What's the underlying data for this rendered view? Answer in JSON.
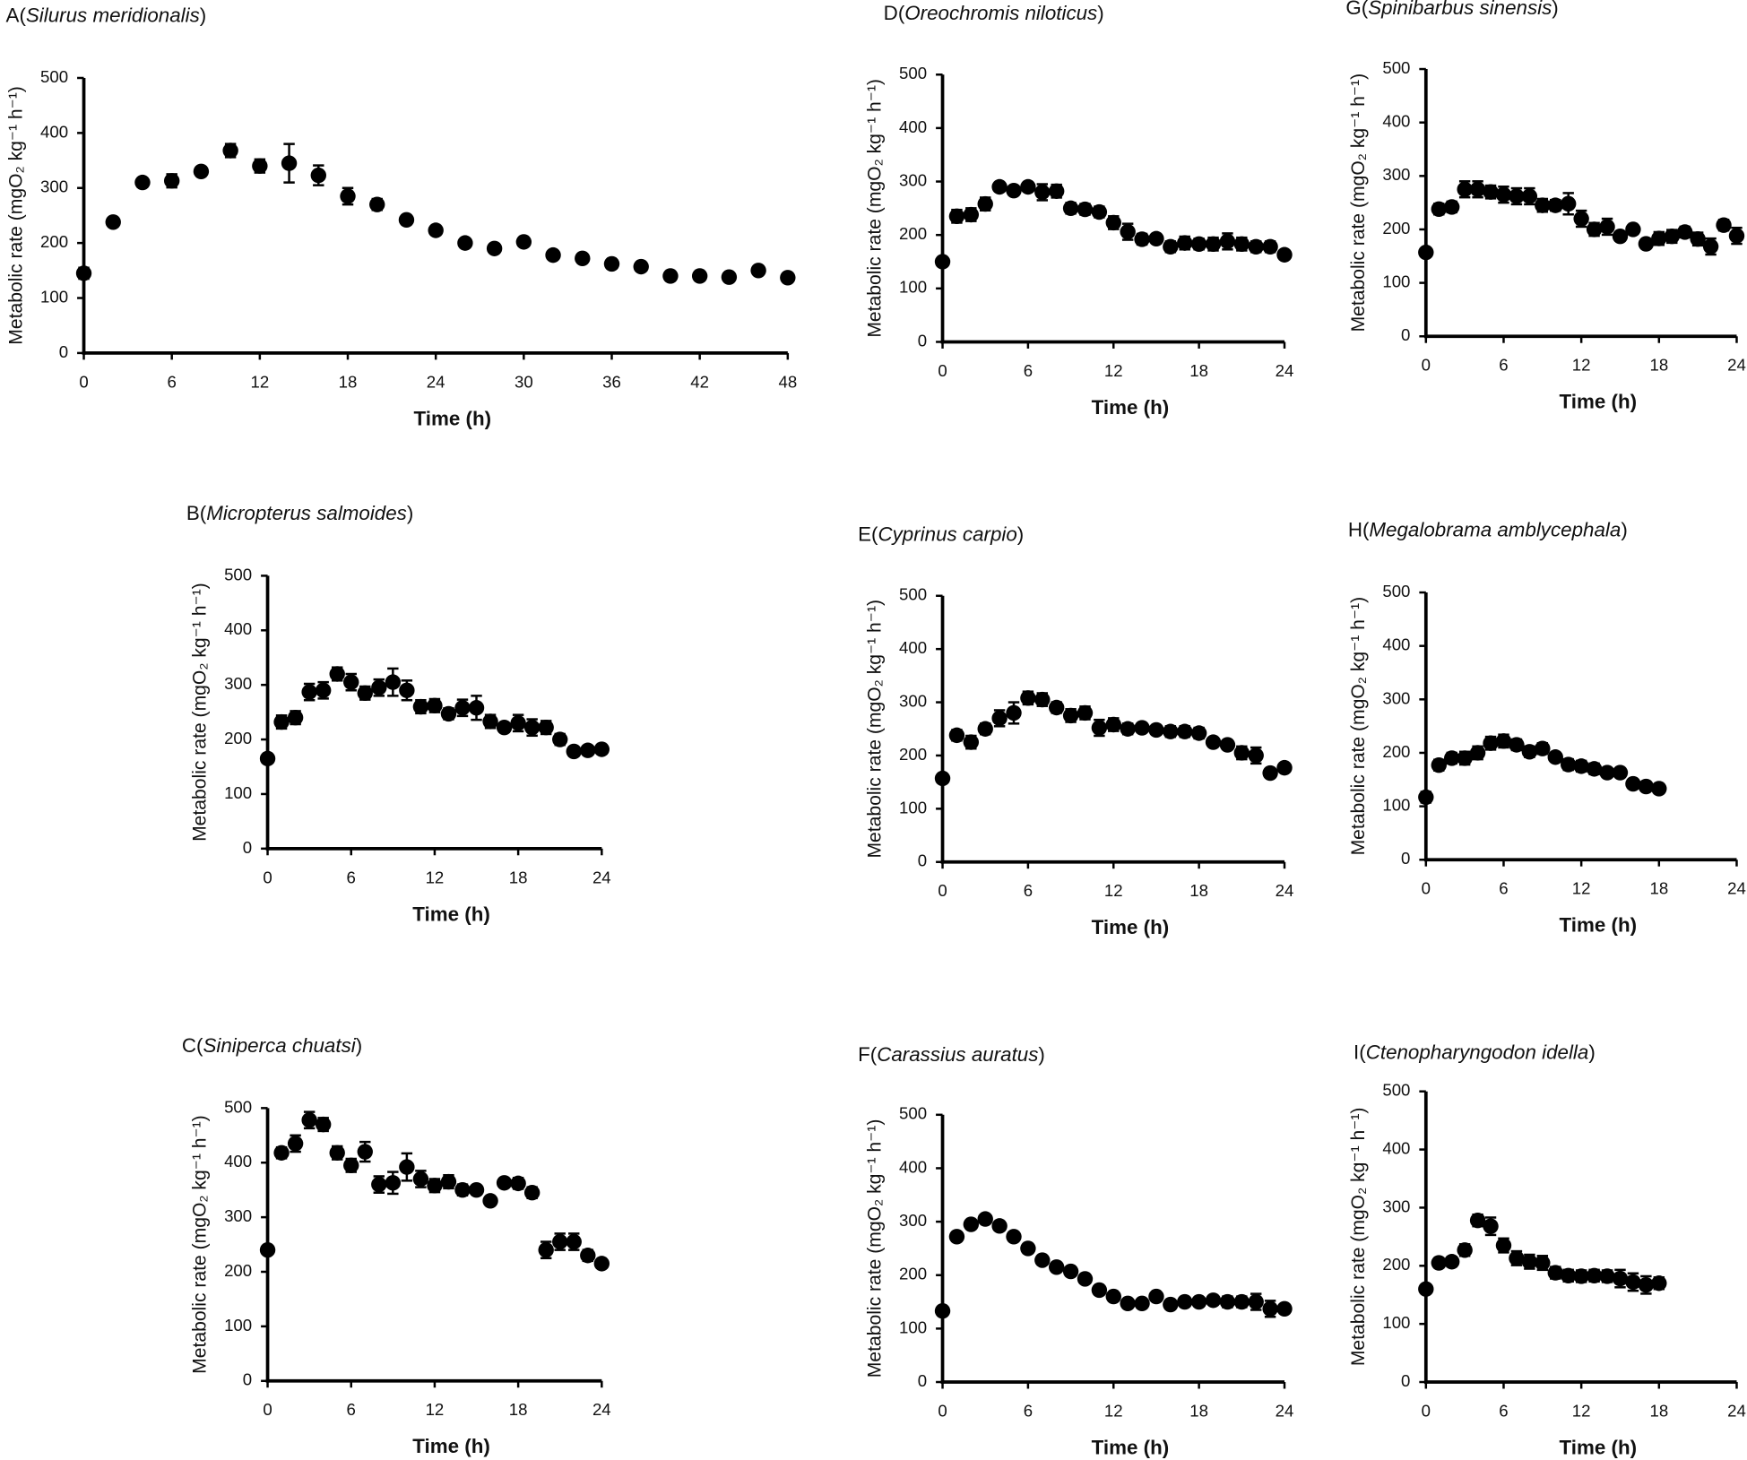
{
  "chart_data": [
    {
      "type": "scatter",
      "title": "A(Silurus meridionalis)",
      "xlabel": "Time (h)",
      "ylabel": "Metabolic rate (mgO₂ kg⁻¹ h⁻¹)",
      "x": [
        0,
        2,
        4,
        6,
        8,
        10,
        12,
        14,
        16,
        18,
        20,
        22,
        24,
        26,
        28,
        30,
        32,
        34,
        36,
        38,
        40,
        42,
        44,
        46,
        48
      ],
      "series": [
        {
          "color": "#000000",
          "values": [
            145,
            238,
            310,
            313,
            330,
            368,
            340,
            345,
            323,
            285,
            270,
            242,
            223,
            200,
            190,
            202,
            178,
            172,
            162,
            157,
            140,
            140,
            138,
            150,
            137
          ],
          "errors": [
            10,
            5,
            8,
            12,
            8,
            12,
            12,
            35,
            18,
            15,
            10,
            8,
            8,
            8,
            8,
            5,
            5,
            5,
            5,
            5,
            5,
            5,
            5,
            5,
            5
          ]
        }
      ],
      "xlim": [
        0,
        48
      ],
      "xticks": [
        0,
        6,
        12,
        18,
        24,
        30,
        36,
        42,
        48
      ],
      "ylim": [
        0,
        500
      ],
      "yticks": [
        0,
        100,
        200,
        300,
        400,
        500
      ]
    },
    {
      "type": "scatter",
      "title": "B(Micropterus salmoides)",
      "xlabel": "Time (h)",
      "ylabel": "Metabolic rate (mgO₂ kg⁻¹ h⁻¹)",
      "x": [
        0,
        1,
        2,
        3,
        4,
        5,
        6,
        7,
        8,
        9,
        10,
        11,
        12,
        13,
        14,
        15,
        16,
        17,
        18,
        19,
        20,
        21,
        22,
        23,
        24
      ],
      "series": [
        {
          "color": "#000000",
          "values": [
            165,
            232,
            240,
            287,
            290,
            320,
            305,
            285,
            295,
            305,
            290,
            260,
            262,
            247,
            258,
            258,
            233,
            222,
            230,
            222,
            222,
            200,
            178,
            180,
            182
          ],
          "errors": [
            5,
            12,
            12,
            15,
            15,
            12,
            15,
            12,
            15,
            25,
            18,
            12,
            12,
            10,
            15,
            22,
            12,
            8,
            15,
            15,
            12,
            10,
            8,
            8,
            8
          ]
        }
      ],
      "xlim": [
        0,
        24
      ],
      "xticks": [
        0,
        6,
        12,
        18,
        24
      ],
      "ylim": [
        0,
        500
      ],
      "yticks": [
        0,
        100,
        200,
        300,
        400,
        500
      ]
    },
    {
      "type": "scatter",
      "title": "C(Siniperca chuatsi)",
      "xlabel": "Time (h)",
      "ylabel": "Metabolic rate (mgO₂ kg⁻¹ h⁻¹)",
      "x": [
        0,
        1,
        2,
        3,
        4,
        5,
        6,
        7,
        8,
        9,
        10,
        11,
        12,
        13,
        14,
        15,
        16,
        17,
        18,
        19,
        20,
        21,
        22,
        23,
        24
      ],
      "series": [
        {
          "color": "#000000",
          "values": [
            240,
            418,
            435,
            478,
            470,
            418,
            395,
            420,
            360,
            363,
            392,
            370,
            358,
            365,
            350,
            350,
            330,
            363,
            362,
            345,
            240,
            255,
            255,
            230,
            215
          ],
          "errors": [
            5,
            10,
            15,
            15,
            12,
            12,
            12,
            18,
            15,
            20,
            25,
            15,
            12,
            12,
            10,
            8,
            5,
            8,
            10,
            10,
            15,
            15,
            15,
            10,
            8
          ]
        }
      ],
      "xlim": [
        0,
        24
      ],
      "xticks": [
        0,
        6,
        12,
        18,
        24
      ],
      "ylim": [
        0,
        500
      ],
      "yticks": [
        0,
        100,
        200,
        300,
        400,
        500
      ]
    },
    {
      "type": "scatter",
      "title": "D(Oreochromis niloticus)",
      "xlabel": "Time (h)",
      "ylabel": "Metabolic rate (mgO₂ kg⁻¹ h⁻¹)",
      "x": [
        0,
        1,
        2,
        3,
        4,
        5,
        6,
        7,
        8,
        9,
        10,
        11,
        12,
        13,
        14,
        15,
        16,
        17,
        18,
        19,
        20,
        21,
        22,
        23,
        24
      ],
      "series": [
        {
          "color": "#000000",
          "values": [
            150,
            235,
            238,
            258,
            290,
            283,
            290,
            280,
            282,
            250,
            248,
            243,
            223,
            206,
            192,
            193,
            178,
            185,
            183,
            183,
            188,
            183,
            178,
            178,
            163
          ],
          "errors": [
            5,
            12,
            12,
            12,
            8,
            8,
            8,
            15,
            12,
            10,
            10,
            10,
            12,
            15,
            10,
            8,
            10,
            12,
            10,
            12,
            15,
            12,
            10,
            10,
            8
          ]
        }
      ],
      "xlim": [
        0,
        24
      ],
      "xticks": [
        0,
        6,
        12,
        18,
        24
      ],
      "ylim": [
        0,
        500
      ],
      "yticks": [
        0,
        100,
        200,
        300,
        400,
        500
      ]
    },
    {
      "type": "scatter",
      "title": "E(Cyprinus carpio)",
      "xlabel": "Time (h)",
      "ylabel": "Metabolic rate (mgO₂ kg⁻¹ h⁻¹)",
      "x": [
        0,
        1,
        2,
        3,
        4,
        5,
        6,
        7,
        8,
        9,
        10,
        11,
        12,
        13,
        14,
        15,
        16,
        17,
        18,
        19,
        20,
        21,
        22,
        23,
        24
      ],
      "series": [
        {
          "color": "#000000",
          "values": [
            157,
            238,
            225,
            250,
            270,
            280,
            308,
            305,
            290,
            275,
            280,
            252,
            258,
            250,
            252,
            248,
            245,
            245,
            242,
            225,
            220,
            205,
            200,
            167,
            177
          ],
          "errors": [
            5,
            10,
            12,
            10,
            15,
            20,
            12,
            12,
            10,
            12,
            12,
            15,
            12,
            10,
            8,
            8,
            10,
            10,
            10,
            8,
            8,
            12,
            15,
            8,
            8
          ]
        }
      ],
      "xlim": [
        0,
        24
      ],
      "xticks": [
        0,
        6,
        12,
        18,
        24
      ],
      "ylim": [
        0,
        500
      ],
      "yticks": [
        0,
        100,
        200,
        300,
        400,
        500
      ]
    },
    {
      "type": "scatter",
      "title": "F(Carassius auratus)",
      "xlabel": "Time (h)",
      "ylabel": "Metabolic rate (mgO₂ kg⁻¹ h⁻¹)",
      "x": [
        0,
        1,
        2,
        3,
        4,
        5,
        6,
        7,
        8,
        9,
        10,
        11,
        12,
        13,
        14,
        15,
        16,
        17,
        18,
        19,
        20,
        21,
        22,
        23,
        24
      ],
      "series": [
        {
          "color": "#000000",
          "values": [
            133,
            272,
            295,
            305,
            292,
            272,
            250,
            228,
            215,
            207,
            193,
            172,
            160,
            147,
            147,
            160,
            145,
            150,
            150,
            153,
            150,
            150,
            150,
            137,
            137
          ],
          "errors": [
            5,
            8,
            8,
            8,
            8,
            8,
            8,
            8,
            5,
            8,
            8,
            5,
            5,
            5,
            5,
            5,
            8,
            8,
            8,
            8,
            10,
            10,
            15,
            15,
            8
          ]
        }
      ],
      "xlim": [
        0,
        24
      ],
      "xticks": [
        0,
        6,
        12,
        18,
        24
      ],
      "ylim": [
        0,
        500
      ],
      "yticks": [
        0,
        100,
        200,
        300,
        400,
        500
      ]
    },
    {
      "type": "scatter",
      "title": "G(Spinibarbus sinensis)",
      "xlabel": "Time (h)",
      "ylabel": "Metabolic rate (mgO₂ kg⁻¹ h⁻¹)",
      "x": [
        0,
        1,
        2,
        3,
        4,
        5,
        6,
        7,
        8,
        9,
        10,
        11,
        12,
        13,
        14,
        15,
        16,
        17,
        18,
        19,
        20,
        21,
        22,
        23,
        24
      ],
      "series": [
        {
          "color": "#000000",
          "values": [
            157,
            238,
            242,
            275,
            275,
            270,
            265,
            262,
            262,
            245,
            245,
            248,
            220,
            200,
            205,
            187,
            200,
            173,
            183,
            187,
            195,
            182,
            168,
            208,
            188
          ],
          "errors": [
            5,
            10,
            10,
            15,
            15,
            12,
            15,
            15,
            15,
            12,
            10,
            20,
            15,
            12,
            15,
            8,
            8,
            5,
            12,
            12,
            10,
            12,
            15,
            10,
            15
          ]
        }
      ],
      "xlim": [
        0,
        24
      ],
      "xticks": [
        0,
        6,
        12,
        18,
        24
      ],
      "ylim": [
        0,
        500
      ],
      "yticks": [
        0,
        100,
        200,
        300,
        400,
        500
      ]
    },
    {
      "type": "scatter",
      "title": "H(Megalobrama amblycephala)",
      "xlabel": "Time (h)",
      "ylabel": "Metabolic rate (mgO₂ kg⁻¹ h⁻¹)",
      "x": [
        0,
        1,
        2,
        3,
        4,
        5,
        6,
        7,
        8,
        9,
        10,
        11,
        12,
        13,
        14,
        15,
        16,
        17,
        18
      ],
      "series": [
        {
          "color": "#000000",
          "values": [
            117,
            177,
            190,
            190,
            200,
            218,
            222,
            215,
            202,
            208,
            192,
            178,
            175,
            170,
            163,
            163,
            142,
            137,
            133
          ],
          "errors": [
            10,
            10,
            10,
            12,
            12,
            12,
            12,
            10,
            10,
            10,
            8,
            10,
            10,
            10,
            8,
            8,
            8,
            8,
            8
          ]
        }
      ],
      "xlim": [
        0,
        24
      ],
      "xticks": [
        0,
        6,
        12,
        18,
        24
      ],
      "ylim": [
        0,
        500
      ],
      "yticks": [
        0,
        100,
        200,
        300,
        400,
        500
      ]
    },
    {
      "type": "scatter",
      "title": "I(Ctenopharyngodon idella)",
      "xlabel": "Time (h)",
      "ylabel": "Metabolic rate (mgO₂ kg⁻¹ h⁻¹)",
      "x": [
        0,
        1,
        2,
        3,
        4,
        5,
        6,
        7,
        8,
        9,
        10,
        11,
        12,
        13,
        14,
        15,
        16,
        17,
        18
      ],
      "series": [
        {
          "color": "#000000",
          "values": [
            160,
            205,
            207,
            227,
            278,
            268,
            235,
            213,
            207,
            205,
            188,
            183,
            182,
            183,
            182,
            178,
            172,
            167,
            170
          ],
          "errors": [
            5,
            8,
            8,
            10,
            10,
            15,
            12,
            12,
            12,
            12,
            10,
            10,
            10,
            10,
            10,
            15,
            15,
            15,
            10
          ]
        }
      ],
      "xlim": [
        0,
        24
      ],
      "xticks": [
        0,
        6,
        12,
        18,
        24
      ],
      "ylim": [
        0,
        500
      ],
      "yticks": [
        0,
        100,
        200,
        300,
        400,
        500
      ]
    }
  ]
}
